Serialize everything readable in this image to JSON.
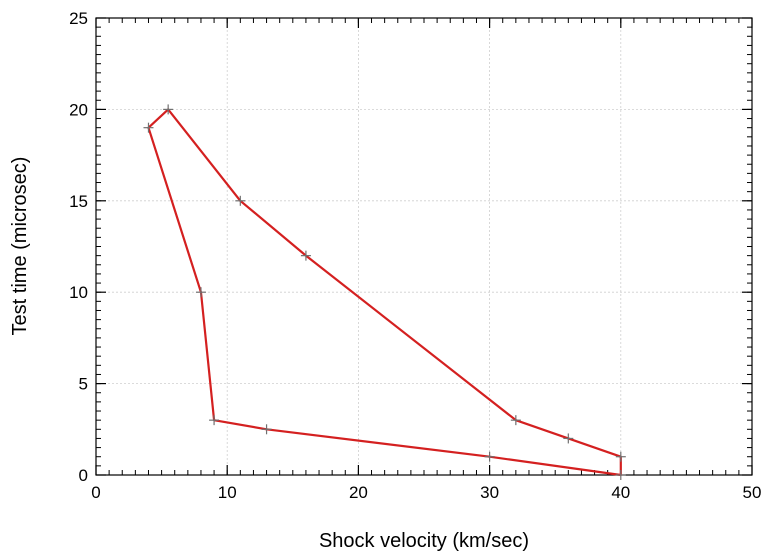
{
  "chart_data": {
    "type": "line",
    "title": "",
    "xlabel": "Shock velocity (km/sec)",
    "ylabel": "Test time (microsec)",
    "xlim": [
      0,
      50
    ],
    "ylim": [
      0,
      25
    ],
    "xticks": [
      0,
      10,
      20,
      30,
      40,
      50
    ],
    "yticks": [
      0,
      5,
      10,
      15,
      20,
      25
    ],
    "grid": true,
    "legend": "none",
    "series": [
      {
        "color": "#d42020",
        "marker": "plus",
        "marker_color": "#707070",
        "points": [
          {
            "x": 40,
            "y": 1
          },
          {
            "x": 36,
            "y": 2
          },
          {
            "x": 32,
            "y": 3
          },
          {
            "x": 16,
            "y": 12
          },
          {
            "x": 11,
            "y": 15
          },
          {
            "x": 5.5,
            "y": 20
          },
          {
            "x": 4,
            "y": 19
          },
          {
            "x": 8,
            "y": 10
          },
          {
            "x": 9,
            "y": 3
          },
          {
            "x": 13,
            "y": 2.5
          },
          {
            "x": 30,
            "y": 1
          },
          {
            "x": 40,
            "y": 0
          },
          {
            "x": 40,
            "y": 1
          }
        ]
      }
    ]
  }
}
